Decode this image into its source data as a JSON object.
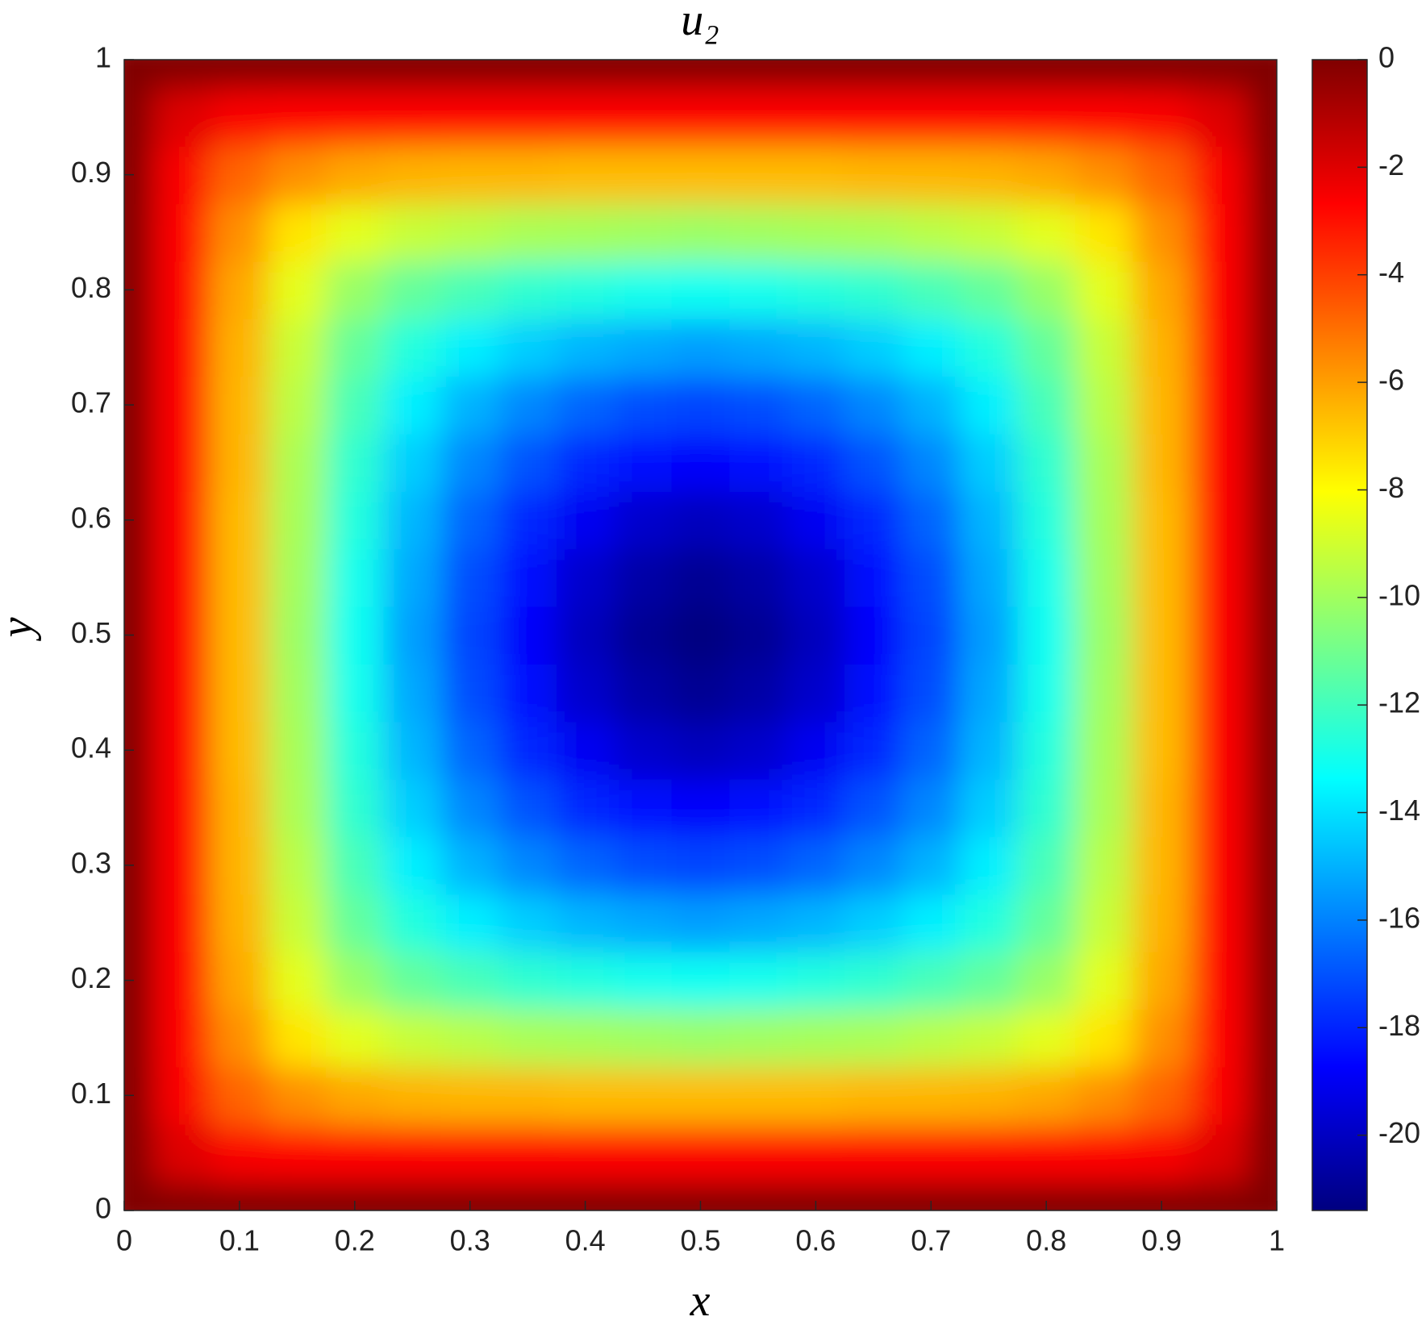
{
  "chart_data": {
    "type": "heatmap",
    "title": "u₂",
    "xlabel": "x",
    "ylabel": "y",
    "colormap": "jet",
    "x": [
      0,
      0.05,
      0.1,
      0.15,
      0.2,
      0.25,
      0.3,
      0.35,
      0.4,
      0.45,
      0.5,
      0.55,
      0.6,
      0.65,
      0.7,
      0.75,
      0.8,
      0.85,
      0.9,
      0.95,
      1
    ],
    "y": [
      0,
      0.05,
      0.1,
      0.15,
      0.2,
      0.25,
      0.3,
      0.35,
      0.4,
      0.45,
      0.5,
      0.55,
      0.6,
      0.65,
      0.7,
      0.75,
      0.8,
      0.85,
      0.9,
      0.95,
      1
    ],
    "z": [
      [
        0,
        0,
        0,
        0,
        0,
        0,
        0,
        0,
        0,
        0,
        0,
        0,
        0,
        0,
        0,
        0,
        0,
        0,
        0,
        0,
        0
      ],
      [
        0,
        -2.0,
        -2.6,
        -2.7,
        -2.7,
        -2.8,
        -2.8,
        -2.8,
        -2.8,
        -2.8,
        -2.8,
        -2.8,
        -2.8,
        -2.8,
        -2.8,
        -2.8,
        -2.7,
        -2.7,
        -2.6,
        -2.0,
        0
      ],
      [
        0,
        -2.6,
        -4.8,
        -5.7,
        -6.2,
        -6.4,
        -6.5,
        -6.5,
        -6.6,
        -6.6,
        -6.6,
        -6.6,
        -6.6,
        -6.5,
        -6.5,
        -6.4,
        -6.2,
        -5.7,
        -4.8,
        -2.6,
        0
      ],
      [
        0,
        -2.7,
        -5.7,
        -7.5,
        -8.6,
        -9.2,
        -9.5,
        -9.8,
        -9.9,
        -10.0,
        -10.1,
        -10.0,
        -9.9,
        -9.8,
        -9.5,
        -9.2,
        -8.6,
        -7.5,
        -5.7,
        -2.7,
        0
      ],
      [
        0,
        -2.7,
        -6.2,
        -8.6,
        -10.2,
        -11.3,
        -11.9,
        -12.4,
        -12.7,
        -13.0,
        -13.1,
        -13.0,
        -12.7,
        -12.4,
        -11.9,
        -11.3,
        -10.2,
        -8.6,
        -6.2,
        -2.7,
        0
      ],
      [
        0,
        -2.8,
        -6.4,
        -9.2,
        -11.3,
        -12.7,
        -13.7,
        -14.4,
        -14.9,
        -15.2,
        -15.4,
        -15.2,
        -14.9,
        -14.4,
        -13.7,
        -12.7,
        -11.3,
        -9.2,
        -6.4,
        -2.8,
        0
      ],
      [
        0,
        -2.8,
        -6.5,
        -9.5,
        -11.9,
        -13.7,
        -15.0,
        -15.9,
        -16.6,
        -17.1,
        -17.3,
        -17.1,
        -16.6,
        -15.9,
        -15.0,
        -13.7,
        -11.9,
        -9.5,
        -6.5,
        -2.8,
        0
      ],
      [
        0,
        -2.8,
        -6.5,
        -9.8,
        -12.4,
        -14.4,
        -15.9,
        -17.0,
        -17.9,
        -18.5,
        -18.8,
        -18.5,
        -17.9,
        -17.0,
        -15.9,
        -14.4,
        -12.4,
        -9.8,
        -6.5,
        -2.8,
        0
      ],
      [
        0,
        -2.8,
        -6.6,
        -9.9,
        -12.7,
        -14.9,
        -16.6,
        -17.9,
        -19.0,
        -19.8,
        -20.1,
        -19.8,
        -19.0,
        -17.9,
        -16.6,
        -14.9,
        -12.7,
        -9.9,
        -6.6,
        -2.8,
        0
      ],
      [
        0,
        -2.8,
        -6.6,
        -10.0,
        -13.0,
        -15.2,
        -17.1,
        -18.5,
        -19.8,
        -20.6,
        -21.0,
        -20.6,
        -19.8,
        -18.5,
        -17.1,
        -15.2,
        -13.0,
        -10.0,
        -6.6,
        -2.8,
        0
      ],
      [
        0,
        -2.8,
        -6.6,
        -10.1,
        -13.1,
        -15.4,
        -17.3,
        -18.8,
        -20.1,
        -21.0,
        -21.4,
        -21.0,
        -20.1,
        -18.8,
        -17.3,
        -15.4,
        -13.1,
        -10.1,
        -6.6,
        -2.8,
        0
      ],
      [
        0,
        -2.8,
        -6.6,
        -10.0,
        -13.0,
        -15.2,
        -17.1,
        -18.5,
        -19.8,
        -20.6,
        -21.0,
        -20.6,
        -19.8,
        -18.5,
        -17.1,
        -15.2,
        -13.0,
        -10.0,
        -6.6,
        -2.8,
        0
      ],
      [
        0,
        -2.8,
        -6.6,
        -9.9,
        -12.7,
        -14.9,
        -16.6,
        -17.9,
        -19.0,
        -19.8,
        -20.1,
        -19.8,
        -19.0,
        -17.9,
        -16.6,
        -14.9,
        -12.7,
        -9.9,
        -6.6,
        -2.8,
        0
      ],
      [
        0,
        -2.8,
        -6.5,
        -9.8,
        -12.4,
        -14.4,
        -15.9,
        -17.0,
        -17.9,
        -18.5,
        -18.8,
        -18.5,
        -17.9,
        -17.0,
        -15.9,
        -14.4,
        -12.4,
        -9.8,
        -6.5,
        -2.8,
        0
      ],
      [
        0,
        -2.8,
        -6.5,
        -9.5,
        -11.9,
        -13.7,
        -15.0,
        -15.9,
        -16.6,
        -17.1,
        -17.3,
        -17.1,
        -16.6,
        -15.9,
        -15.0,
        -13.7,
        -11.9,
        -9.5,
        -6.5,
        -2.8,
        0
      ],
      [
        0,
        -2.8,
        -6.4,
        -9.2,
        -11.3,
        -12.7,
        -13.7,
        -14.4,
        -14.9,
        -15.2,
        -15.4,
        -15.2,
        -14.9,
        -14.4,
        -13.7,
        -12.7,
        -11.3,
        -9.2,
        -6.4,
        -2.8,
        0
      ],
      [
        0,
        -2.7,
        -6.2,
        -8.6,
        -10.2,
        -11.3,
        -11.9,
        -12.4,
        -12.7,
        -13.0,
        -13.1,
        -13.0,
        -12.7,
        -12.4,
        -11.9,
        -11.3,
        -10.2,
        -8.6,
        -6.2,
        -2.7,
        0
      ],
      [
        0,
        -2.7,
        -5.7,
        -7.5,
        -8.6,
        -9.2,
        -9.5,
        -9.8,
        -9.9,
        -10.0,
        -10.1,
        -10.0,
        -9.9,
        -9.8,
        -9.5,
        -9.2,
        -8.6,
        -7.5,
        -5.7,
        -2.7,
        0
      ],
      [
        0,
        -2.6,
        -4.8,
        -5.7,
        -6.2,
        -6.4,
        -6.5,
        -6.5,
        -6.6,
        -6.6,
        -6.6,
        -6.6,
        -6.6,
        -6.5,
        -6.5,
        -6.4,
        -6.2,
        -5.7,
        -4.8,
        -2.6,
        0
      ],
      [
        0,
        -2.0,
        -2.6,
        -2.7,
        -2.7,
        -2.8,
        -2.8,
        -2.8,
        -2.8,
        -2.8,
        -2.8,
        -2.8,
        -2.8,
        -2.8,
        -2.8,
        -2.8,
        -2.7,
        -2.7,
        -2.6,
        -2.0,
        0
      ],
      [
        0,
        0,
        0,
        0,
        0,
        0,
        0,
        0,
        0,
        0,
        0,
        0,
        0,
        0,
        0,
        0,
        0,
        0,
        0,
        0,
        0
      ]
    ],
    "xlim": [
      0,
      1
    ],
    "ylim": [
      0,
      1
    ],
    "xticks": [
      0,
      0.1,
      0.2,
      0.3,
      0.4,
      0.5,
      0.6,
      0.7,
      0.8,
      0.9,
      1
    ],
    "yticks": [
      0,
      0.1,
      0.2,
      0.3,
      0.4,
      0.5,
      0.6,
      0.7,
      0.8,
      0.9,
      1
    ],
    "clim": [
      -21.4,
      0
    ],
    "cticks": [
      0,
      -2,
      -4,
      -6,
      -8,
      -10,
      -12,
      -14,
      -16,
      -18,
      -20
    ]
  }
}
